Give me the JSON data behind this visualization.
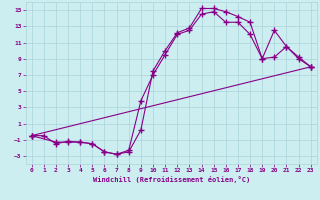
{
  "background_color": "#cceef0",
  "grid_color": "#aad4d8",
  "line_color": "#880088",
  "xlabel": "Windchill (Refroidissement éolien,°C)",
  "xlim": [
    -0.5,
    23.5
  ],
  "ylim": [
    -4,
    16
  ],
  "yticks": [
    -3,
    -1,
    1,
    3,
    5,
    7,
    9,
    11,
    13,
    15
  ],
  "xticks": [
    0,
    1,
    2,
    3,
    4,
    5,
    6,
    7,
    8,
    9,
    10,
    11,
    12,
    13,
    14,
    15,
    16,
    17,
    18,
    19,
    20,
    21,
    22,
    23
  ],
  "line1_x": [
    0,
    1,
    2,
    3,
    4,
    5,
    6,
    7,
    8,
    9,
    10,
    11,
    12,
    13,
    14,
    15,
    16,
    17,
    18,
    19,
    20,
    21,
    22,
    23
  ],
  "line1_y": [
    -0.5,
    -0.5,
    -1.5,
    -1.2,
    -1.3,
    -1.5,
    -2.5,
    -2.8,
    -2.5,
    0.2,
    7.5,
    10.0,
    12.2,
    12.8,
    15.2,
    15.2,
    14.8,
    14.2,
    13.5,
    9.0,
    9.2,
    10.5,
    9.2,
    8.0
  ],
  "line2_x": [
    0,
    2,
    3,
    4,
    5,
    6,
    7,
    8,
    9,
    10,
    11,
    12,
    13,
    14,
    15,
    16,
    17,
    18,
    19,
    20,
    21,
    22,
    23
  ],
  "line2_y": [
    -0.5,
    -1.3,
    -1.3,
    -1.3,
    -1.5,
    -2.5,
    -2.8,
    -2.3,
    3.8,
    7.0,
    9.5,
    12.0,
    12.5,
    14.5,
    14.8,
    13.5,
    13.5,
    12.0,
    9.0,
    12.5,
    10.5,
    9.0,
    8.0
  ],
  "line3_x": [
    0,
    23
  ],
  "line3_y": [
    -0.5,
    8.0
  ],
  "marker": "+",
  "markersize": 4,
  "linewidth": 0.8
}
